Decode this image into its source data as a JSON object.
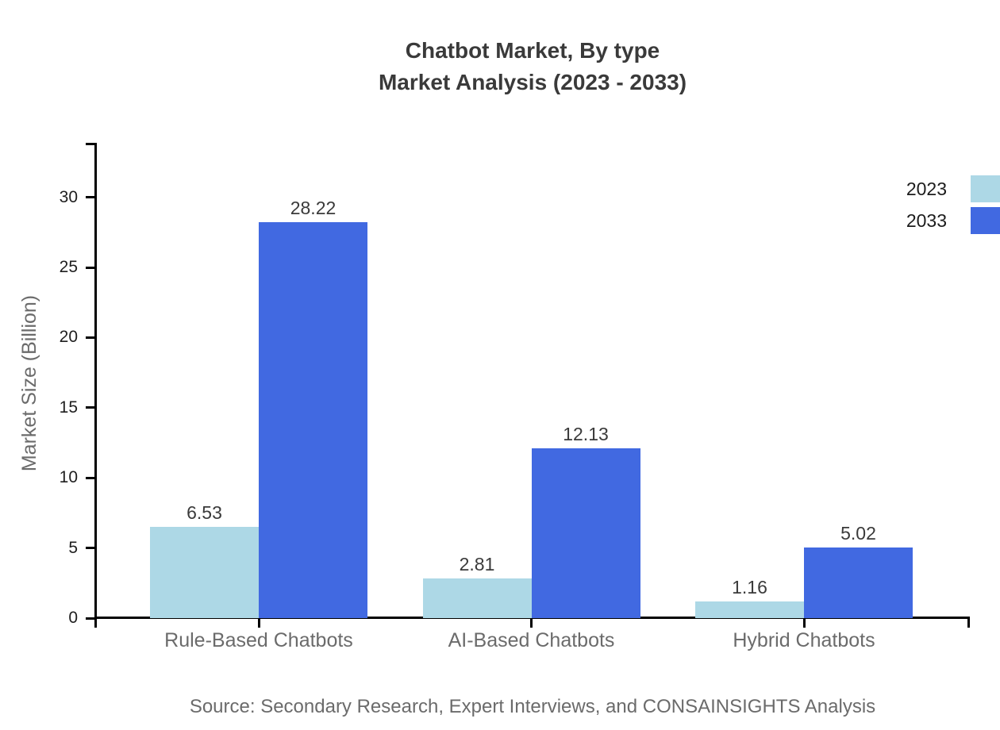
{
  "figure": {
    "title_line1": "Chatbot Market, By type",
    "title_line2": "Market Analysis (2023 - 2033)",
    "source": "Source: Secondary Research, Expert Interviews, and CONSAINSIGHTS Analysis"
  },
  "chart_data": {
    "type": "bar",
    "title": "Chatbot Market, By type - Market Analysis (2023 - 2033)",
    "categories": [
      "Rule-Based Chatbots",
      "AI-Based Chatbots",
      "Hybrid Chatbots"
    ],
    "series": [
      {
        "name": "2023",
        "color": "#ADD8E6",
        "values": [
          6.53,
          2.81,
          1.16
        ]
      },
      {
        "name": "2033",
        "color": "#4169E1",
        "values": [
          28.22,
          12.13,
          5.02
        ]
      }
    ],
    "ylabel": "Market Size (Billion)",
    "xlabel": "",
    "yticks": [
      0,
      5,
      10,
      15,
      20,
      25,
      30
    ],
    "ylim": [
      0,
      33.9
    ],
    "grid": false,
    "value_labels_shown": true,
    "legend_position": "upper-right outside plot",
    "colors": {
      "axis": "#000000",
      "title_text": "#3a3a3a",
      "tick_label_text": "#1e1e1e",
      "category_text": "#6b6b6b",
      "value_label_text": "#3a3a3a",
      "source_text": "#6b6b6b"
    }
  }
}
